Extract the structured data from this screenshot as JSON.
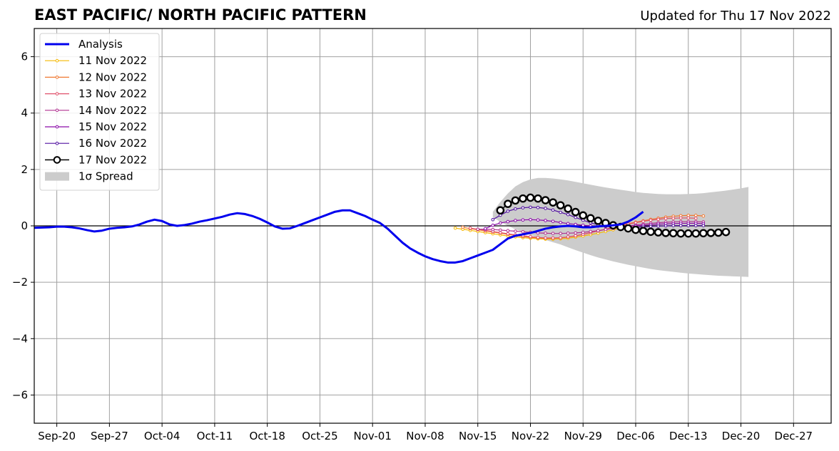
{
  "chart_data": {
    "type": "line",
    "title": "EAST PACIFIC/ NORTH PACIFIC PATTERN",
    "subtitle": "Updated for Thu 17 Nov 2022",
    "xlabel": "",
    "ylabel": "",
    "ylim": [
      -7,
      7
    ],
    "x_start": "2022-09-17",
    "x_end": "2023-01-01",
    "grid": true,
    "legend_placement": "top-left",
    "x_ticks": [
      "Sep-20",
      "Sep-27",
      "Oct-04",
      "Oct-11",
      "Oct-18",
      "Oct-25",
      "Nov-01",
      "Nov-08",
      "Nov-15",
      "Nov-22",
      "Nov-29",
      "Dec-06",
      "Dec-13",
      "Dec-20",
      "Dec-27"
    ],
    "x_tick_dates": [
      "2022-09-20",
      "2022-09-27",
      "2022-10-04",
      "2022-10-11",
      "2022-10-18",
      "2022-10-25",
      "2022-11-01",
      "2022-11-08",
      "2022-11-15",
      "2022-11-22",
      "2022-11-29",
      "2022-12-06",
      "2022-12-13",
      "2022-12-20",
      "2022-12-27"
    ],
    "y_ticks": [
      -6,
      -4,
      -2,
      0,
      2,
      4,
      6
    ],
    "y_tick_labels": [
      "−6",
      "−4",
      "−2",
      "0",
      "2",
      "4",
      "6"
    ],
    "analysis": {
      "name": "Analysis",
      "color": "#0000ee",
      "start": "2022-09-17",
      "values": [
        -0.07,
        -0.06,
        -0.05,
        -0.03,
        -0.03,
        -0.05,
        -0.09,
        -0.15,
        -0.2,
        -0.17,
        -0.1,
        -0.07,
        -0.05,
        -0.02,
        0.05,
        0.15,
        0.22,
        0.17,
        0.05,
        0.0,
        0.03,
        0.08,
        0.15,
        0.2,
        0.26,
        0.32,
        0.4,
        0.45,
        0.42,
        0.35,
        0.25,
        0.12,
        -0.02,
        -0.1,
        -0.09,
        0.0,
        0.1,
        0.2,
        0.3,
        0.4,
        0.5,
        0.55,
        0.55,
        0.45,
        0.35,
        0.22,
        0.1,
        -0.1,
        -0.35,
        -0.6,
        -0.8,
        -0.95,
        -1.08,
        -1.18,
        -1.25,
        -1.3,
        -1.3,
        -1.25,
        -1.15,
        -1.05,
        -0.95,
        -0.85,
        -0.65,
        -0.45,
        -0.35,
        -0.3,
        -0.25,
        -0.18,
        -0.1,
        -0.05,
        -0.02,
        0.0,
        -0.02,
        -0.05,
        -0.05,
        -0.02,
        0.0,
        0.02,
        0.05,
        0.15,
        0.3,
        0.5
      ]
    },
    "forecasts": [
      {
        "name": "11 Nov 2022",
        "color": "#f5b800",
        "start": "2022-11-12",
        "values": [
          -0.08,
          -0.12,
          -0.16,
          -0.2,
          -0.24,
          -0.28,
          -0.32,
          -0.36,
          -0.39,
          -0.42,
          -0.44,
          -0.46,
          -0.47,
          -0.47,
          -0.46,
          -0.44,
          -0.4,
          -0.36,
          -0.31,
          -0.26,
          -0.2,
          -0.14,
          -0.08,
          -0.03,
          0.0
        ]
      },
      {
        "name": "12 Nov 2022",
        "color": "#f07830",
        "start": "2022-11-13",
        "values": [
          -0.05,
          -0.1,
          -0.14,
          -0.18,
          -0.22,
          -0.26,
          -0.3,
          -0.34,
          -0.38,
          -0.41,
          -0.43,
          -0.44,
          -0.44,
          -0.43,
          -0.4,
          -0.36,
          -0.3,
          -0.24,
          -0.18,
          -0.12,
          -0.05,
          0.02,
          0.08,
          0.13,
          0.18,
          0.23,
          0.27,
          0.31,
          0.34,
          0.36,
          0.37,
          0.37,
          0.35
        ]
      },
      {
        "name": "13 Nov 2022",
        "color": "#e0506a",
        "start": "2022-11-14",
        "values": [
          -0.08,
          -0.12,
          -0.16,
          -0.2,
          -0.24,
          -0.28,
          -0.32,
          -0.35,
          -0.38,
          -0.41,
          -0.43,
          -0.43,
          -0.42,
          -0.39,
          -0.35,
          -0.3,
          -0.24,
          -0.18,
          -0.12,
          -0.06,
          0.0,
          0.06,
          0.11,
          0.16,
          0.2,
          0.23,
          0.26,
          0.27,
          0.28,
          0.28,
          0.27
        ]
      },
      {
        "name": "14 Nov 2022",
        "color": "#b03090",
        "start": "2022-11-15",
        "values": [
          -0.12,
          -0.12,
          -0.13,
          -0.15,
          -0.17,
          -0.19,
          -0.21,
          -0.23,
          -0.25,
          -0.26,
          -0.27,
          -0.27,
          -0.26,
          -0.25,
          -0.23,
          -0.2,
          -0.17,
          -0.13,
          -0.09,
          -0.05,
          -0.01,
          0.03,
          0.06,
          0.09,
          0.11,
          0.13,
          0.14,
          0.15,
          0.15,
          0.15,
          0.14
        ]
      },
      {
        "name": "15 Nov 2022",
        "color": "#8a0aa8",
        "start": "2022-11-16",
        "values": [
          -0.1,
          0.02,
          0.1,
          0.15,
          0.19,
          0.21,
          0.22,
          0.21,
          0.19,
          0.16,
          0.12,
          0.08,
          0.05,
          0.02,
          0.0,
          -0.01,
          -0.02,
          -0.02,
          -0.02,
          -0.01,
          0.0,
          0.02,
          0.04,
          0.06,
          0.07,
          0.08,
          0.09,
          0.09,
          0.09,
          0.08
        ]
      },
      {
        "name": "16 Nov 2022",
        "color": "#5010a0",
        "start": "2022-11-17",
        "values": [
          0.22,
          0.38,
          0.52,
          0.6,
          0.64,
          0.66,
          0.65,
          0.62,
          0.56,
          0.48,
          0.4,
          0.3,
          0.2,
          0.11,
          0.04,
          -0.02,
          -0.05,
          -0.06,
          -0.06,
          -0.05,
          -0.04,
          -0.02,
          -0.01,
          0.0,
          0.01,
          0.01,
          0.01,
          0.01,
          0.01
        ]
      },
      {
        "name": "17 Nov 2022",
        "color": "#000000",
        "start": "2022-11-18",
        "values": [
          0.55,
          0.78,
          0.9,
          0.97,
          1.0,
          0.97,
          0.91,
          0.83,
          0.73,
          0.61,
          0.49,
          0.37,
          0.27,
          0.18,
          0.1,
          0.02,
          -0.04,
          -0.09,
          -0.14,
          -0.18,
          -0.21,
          -0.23,
          -0.25,
          -0.26,
          -0.27,
          -0.27,
          -0.27,
          -0.26,
          -0.25,
          -0.24,
          -0.22
        ]
      }
    ],
    "spread": {
      "name": "1σ Spread",
      "color": "#cccccc",
      "start": "2022-11-17",
      "upper": [
        0.5,
        0.85,
        1.15,
        1.4,
        1.55,
        1.65,
        1.7,
        1.7,
        1.68,
        1.65,
        1.61,
        1.56,
        1.51,
        1.46,
        1.41,
        1.36,
        1.32,
        1.28,
        1.24,
        1.2,
        1.17,
        1.15,
        1.13,
        1.12,
        1.12,
        1.12,
        1.13,
        1.14,
        1.16,
        1.19,
        1.22,
        1.25,
        1.29,
        1.33,
        1.38
      ],
      "lower": [
        0.3,
        0.15,
        0.0,
        -0.12,
        -0.22,
        -0.32,
        -0.42,
        -0.5,
        -0.58,
        -0.66,
        -0.76,
        -0.86,
        -0.95,
        -1.04,
        -1.12,
        -1.19,
        -1.26,
        -1.32,
        -1.38,
        -1.43,
        -1.48,
        -1.53,
        -1.57,
        -1.6,
        -1.63,
        -1.66,
        -1.69,
        -1.71,
        -1.73,
        -1.75,
        -1.77,
        -1.78,
        -1.79,
        -1.8,
        -1.81
      ]
    }
  }
}
